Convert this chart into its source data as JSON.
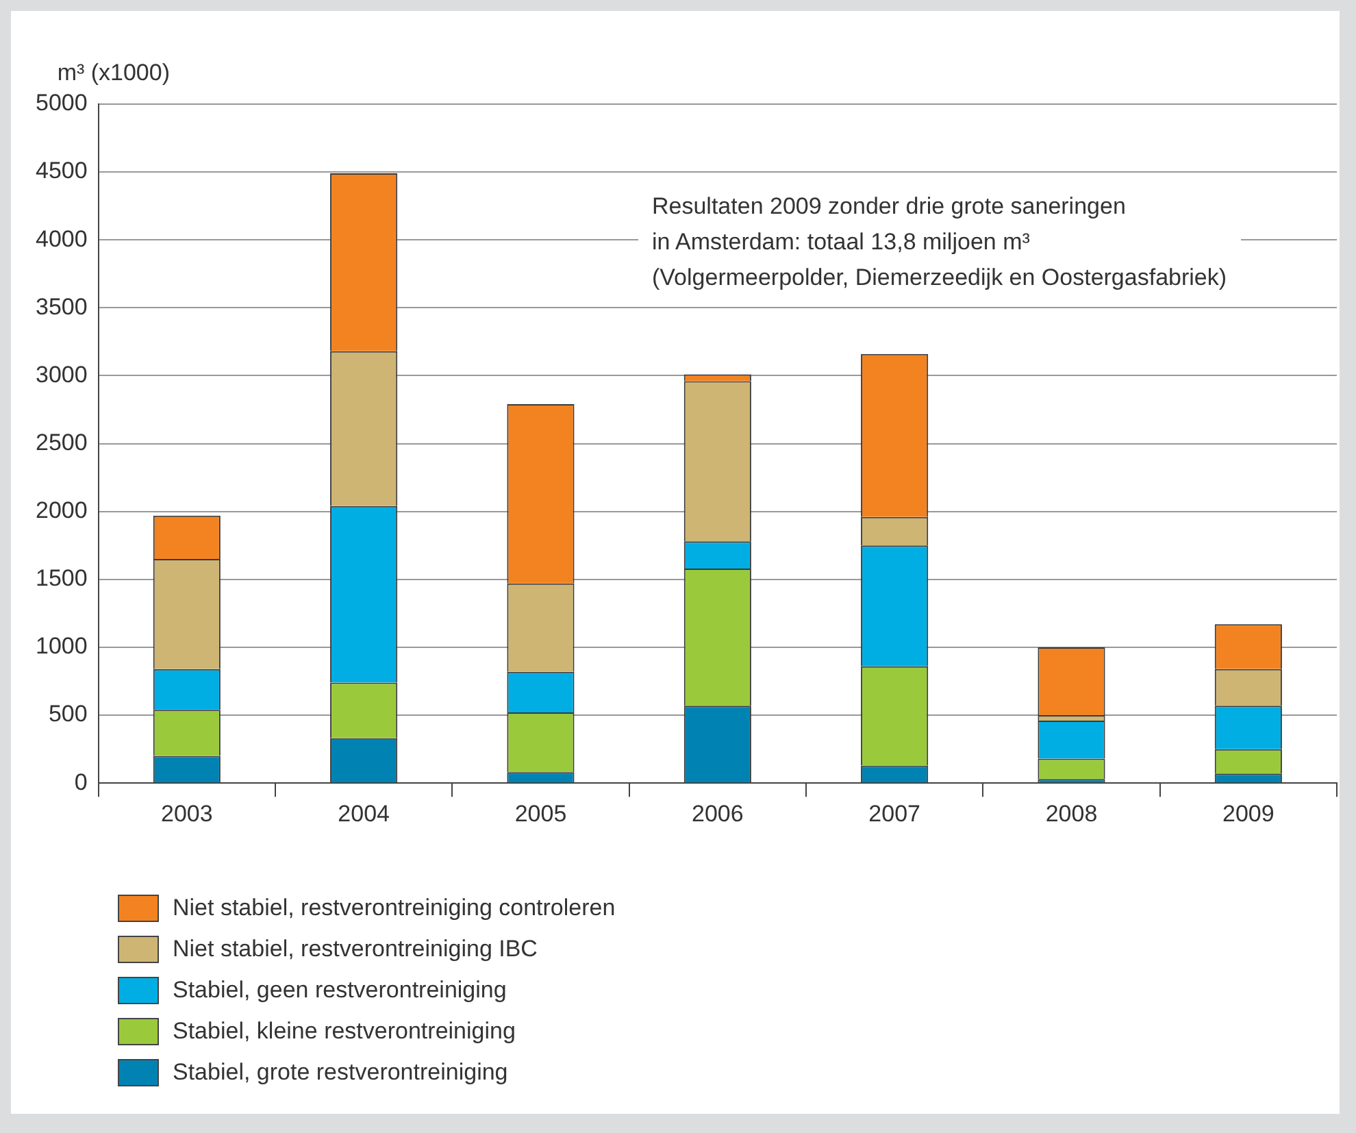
{
  "chart_data": {
    "type": "bar",
    "stacked": true,
    "ylabel": "m³ (x1000)",
    "categories": [
      "2003",
      "2004",
      "2005",
      "2006",
      "2007",
      "2008",
      "2009"
    ],
    "series": [
      {
        "name": "Stabiel, grote restverontreiniging",
        "color": "#0083b3",
        "values": [
          200,
          330,
          80,
          570,
          130,
          30,
          70
        ]
      },
      {
        "name": "Stabiel, kleine restverontreiniging",
        "color": "#9aca3c",
        "values": [
          340,
          410,
          440,
          1010,
          730,
          150,
          180
        ]
      },
      {
        "name": "Stabiel, geen restverontreiniging",
        "color": "#00aee3",
        "values": [
          300,
          1300,
          300,
          200,
          890,
          280,
          320
        ]
      },
      {
        "name": "Niet stabiel, restverontreiniging IBC",
        "color": "#cfb573",
        "values": [
          810,
          1140,
          650,
          1180,
          210,
          40,
          270
        ]
      },
      {
        "name": "Niet stabiel, restverontreiniging controleren",
        "color": "#f38321",
        "values": [
          320,
          1310,
          1320,
          50,
          1200,
          500,
          330
        ]
      }
    ],
    "ylim": [
      0,
      5000
    ],
    "yticks": [
      0,
      500,
      1000,
      1500,
      2000,
      2500,
      3000,
      3500,
      4000,
      4500,
      5000
    ],
    "grid": "y",
    "legend": "bottom left",
    "annotations": [
      "Resultaten 2009 zonder drie grote saneringen\nin Amsterdam: totaal 13,8 miljoen m³\n(Volgermeerpolder, Diemerzeedijk en Oostergasfabriek)"
    ]
  }
}
